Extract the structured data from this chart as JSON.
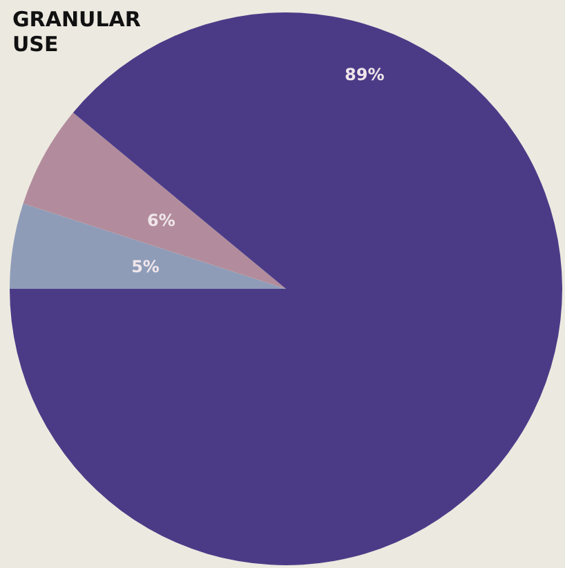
{
  "chart_data": {
    "type": "pie",
    "title": "GRANULAR USE",
    "categories": [
      null,
      null,
      null
    ],
    "values": [
      5,
      6,
      89
    ],
    "value_labels": [
      "5%",
      "6%",
      "89%"
    ],
    "colors": [
      "#8e9cb8",
      "#b28c9c",
      "#4b3b87"
    ]
  }
}
